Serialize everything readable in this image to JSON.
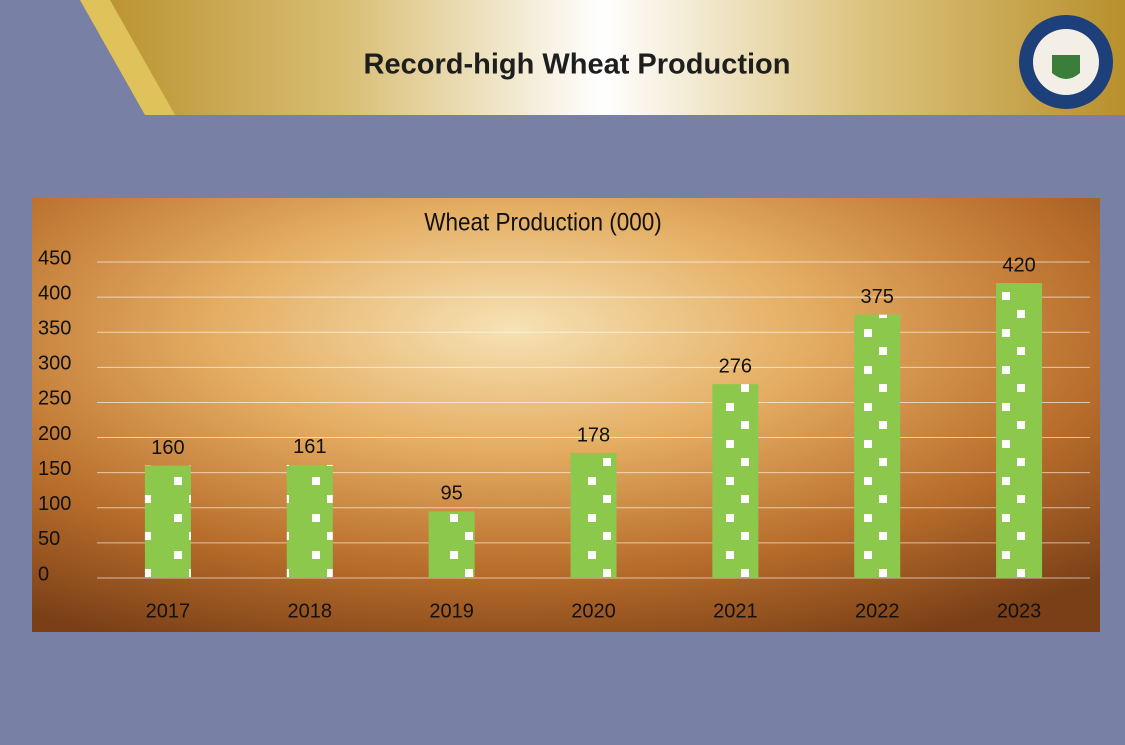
{
  "header": {
    "title": "Record-high Wheat Production"
  },
  "chart_data": {
    "type": "bar",
    "title": "Wheat Production (000)",
    "categories": [
      "2017",
      "2018",
      "2019",
      "2020",
      "2021",
      "2022",
      "2023"
    ],
    "values": [
      160,
      161,
      95,
      178,
      276,
      375,
      420
    ],
    "color": "#8cc84b",
    "ylim": [
      0,
      450
    ],
    "yticks": [
      0,
      50,
      100,
      150,
      200,
      250,
      300,
      350,
      400,
      450
    ],
    "grid": true
  }
}
